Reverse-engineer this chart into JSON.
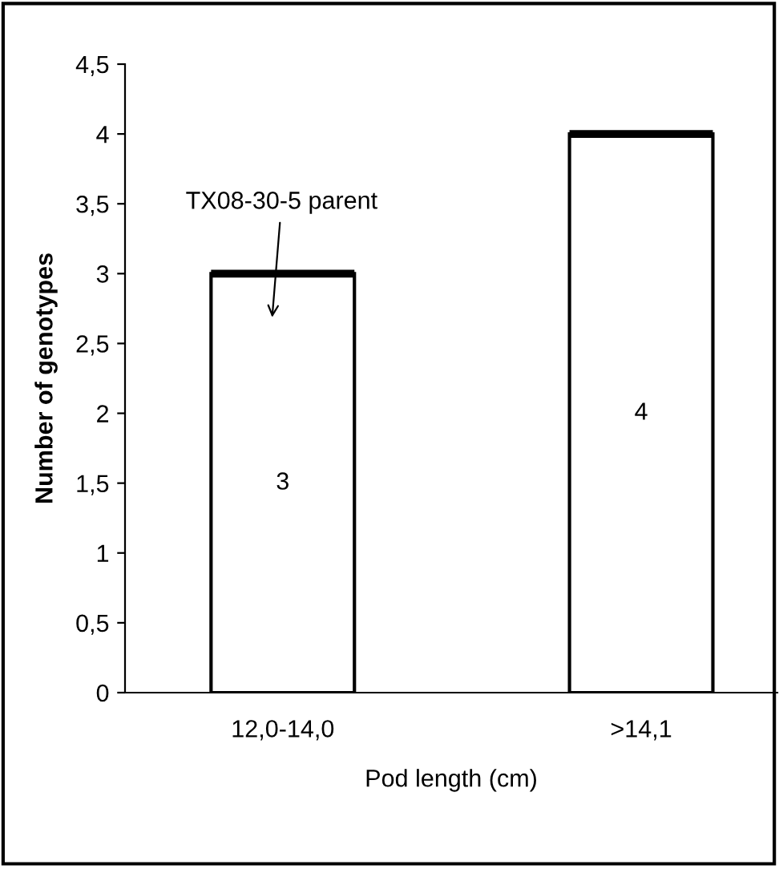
{
  "chart_data": {
    "type": "bar",
    "xlabel": "Pod length (cm)",
    "ylabel": "Number of genotypes",
    "categories": [
      "12,0-14,0",
      ">14,1"
    ],
    "values": [
      3,
      4
    ],
    "color": "#ffffff",
    "data_labels": true,
    "ylim": [
      0,
      4.5
    ],
    "yticks": [
      0,
      {
        "value": 0.5,
        "label": "0,5"
      },
      1,
      {
        "value": 1.5,
        "label": "1,5"
      },
      2,
      {
        "value": 2.5,
        "label": "2,5"
      },
      3,
      {
        "value": 3.5,
        "label": "3,5"
      },
      4,
      {
        "value": 4.5,
        "label": "4,5"
      }
    ],
    "annotations": [
      "TX08-30-5 parent"
    ],
    "grid": false,
    "legend": false
  }
}
